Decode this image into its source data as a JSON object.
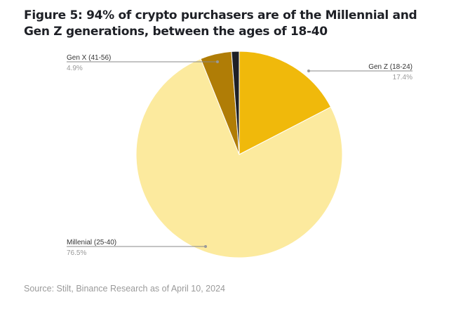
{
  "title": "Figure 5: 94% of crypto purchasers are of the Millennial and Gen Z generations, between the ages of 18-40",
  "source": "Source: Stilt, Binance Research as of April 10, 2024",
  "chart_data": {
    "type": "pie",
    "title": "",
    "start": "12 o'clock, clockwise",
    "slices": [
      {
        "name": "Gen Z (18-24)",
        "value": 17.4,
        "label": "17.4%",
        "color": "#F0B90B"
      },
      {
        "name": "Millenial (25-40)",
        "value": 76.5,
        "label": "76.5%",
        "color": "#FCEA9E"
      },
      {
        "name": "Gen X (41-56)",
        "value": 4.9,
        "label": "4.9%",
        "color": "#B07D06"
      },
      {
        "name": "",
        "value": 1.2,
        "label": "",
        "color": "#1E2026"
      }
    ]
  }
}
